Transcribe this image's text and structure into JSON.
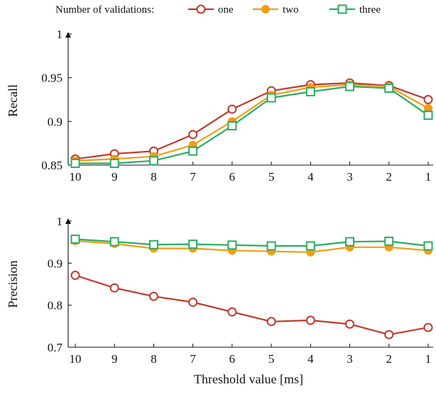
{
  "legend": {
    "title": "Number of validations:",
    "items": [
      {
        "name": "one",
        "color": "#c0392b",
        "marker": "circle"
      },
      {
        "name": "two",
        "color": "#f39c12",
        "marker": "circle-filled"
      },
      {
        "name": "three",
        "color": "#27ae60",
        "marker": "square"
      }
    ]
  },
  "xlabel": "Threshold value [ms]",
  "chart_data": [
    {
      "type": "line",
      "ylabel": "Recall",
      "x": [
        10,
        9,
        8,
        7,
        6,
        5,
        4,
        3,
        2,
        1
      ],
      "xticks": [
        "10",
        "9",
        "8",
        "7",
        "6",
        "5",
        "4",
        "3",
        "2",
        "1"
      ],
      "ylim": [
        0.85,
        1.0
      ],
      "yticks": [
        {
          "value": 0.85,
          "label": "0.85"
        },
        {
          "value": 0.9,
          "label": "0.9"
        },
        {
          "value": 0.95,
          "label": "0.95"
        },
        {
          "value": 1.0,
          "label": "1"
        }
      ],
      "grid": false,
      "series": [
        {
          "name": "one",
          "values": [
            0.857,
            0.863,
            0.866,
            0.885,
            0.914,
            0.935,
            0.942,
            0.944,
            0.941,
            0.925
          ]
        },
        {
          "name": "two",
          "values": [
            0.855,
            0.857,
            0.86,
            0.873,
            0.9,
            0.93,
            0.939,
            0.942,
            0.94,
            0.915
          ]
        },
        {
          "name": "three",
          "values": [
            0.852,
            0.852,
            0.855,
            0.866,
            0.895,
            0.927,
            0.934,
            0.94,
            0.938,
            0.907
          ]
        }
      ]
    },
    {
      "type": "line",
      "ylabel": "Precision",
      "x": [
        10,
        9,
        8,
        7,
        6,
        5,
        4,
        3,
        2,
        1
      ],
      "xticks": [
        "10",
        "9",
        "8",
        "7",
        "6",
        "5",
        "4",
        "3",
        "2",
        "1"
      ],
      "ylim": [
        0.7,
        1.0
      ],
      "yticks": [
        {
          "value": 0.7,
          "label": "0.7"
        },
        {
          "value": 0.8,
          "label": "0.8"
        },
        {
          "value": 0.9,
          "label": "0.9"
        },
        {
          "value": 1.0,
          "label": "1"
        }
      ],
      "grid": false,
      "series": [
        {
          "name": "one",
          "values": [
            0.871,
            0.841,
            0.821,
            0.807,
            0.784,
            0.761,
            0.764,
            0.755,
            0.73,
            0.747
          ]
        },
        {
          "name": "two",
          "values": [
            0.953,
            0.946,
            0.935,
            0.935,
            0.93,
            0.928,
            0.926,
            0.938,
            0.938,
            0.93
          ]
        },
        {
          "name": "three",
          "values": [
            0.957,
            0.951,
            0.944,
            0.945,
            0.943,
            0.941,
            0.941,
            0.951,
            0.952,
            0.941
          ]
        }
      ]
    }
  ]
}
